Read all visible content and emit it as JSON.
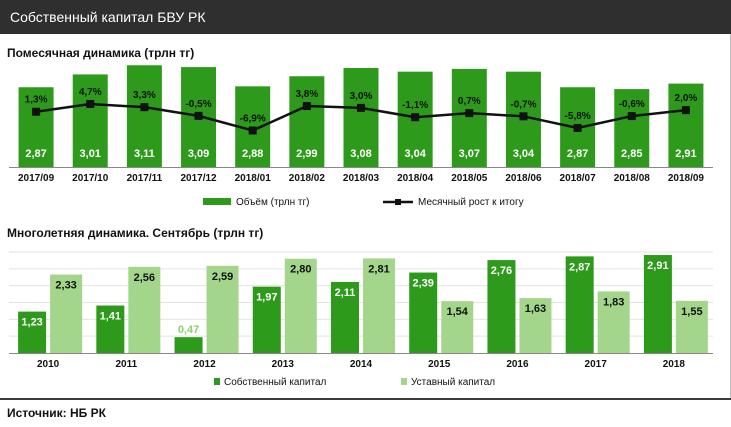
{
  "header": {
    "title": "Собственный  капитал БВУ РК"
  },
  "footer": {
    "source": "Источник:  НБ РК"
  },
  "colors": {
    "dark_green": "#2e9a1b",
    "light_green": "#a3d68a",
    "line": "#111111",
    "header_bg": "#2f2f2f"
  },
  "chart_data": [
    {
      "type": "bar",
      "title": "Помесячная динамика  (трлн тг)",
      "categories": [
        "2017/09",
        "2017/10",
        "2017/11",
        "2017/12",
        "2018/01",
        "2018/02",
        "2018/03",
        "2018/04",
        "2018/05",
        "2018/06",
        "2018/07",
        "2018/08",
        "2018/09"
      ],
      "series": [
        {
          "name": "Объём  (трлн тг)",
          "type": "bar",
          "values": [
            2.87,
            3.01,
            3.11,
            3.09,
            2.88,
            2.99,
            3.08,
            3.04,
            3.07,
            3.04,
            2.87,
            2.85,
            2.91
          ],
          "labels": [
            "2,87",
            "3,01",
            "3,11",
            "3,09",
            "2,88",
            "2,99",
            "3,08",
            "3,04",
            "3,07",
            "3,04",
            "2,87",
            "2,85",
            "2,91"
          ]
        },
        {
          "name": "Месячный рост к итогу",
          "type": "line",
          "values": [
            1.3,
            4.7,
            3.3,
            -0.5,
            -6.9,
            3.8,
            3.0,
            -1.1,
            0.7,
            -0.7,
            -5.8,
            -0.6,
            2.0
          ],
          "labels": [
            "1,3%",
            "4,7%",
            "3,3%",
            "-0,5%",
            "-6,9%",
            "3,8%",
            "3,0%",
            "-1,1%",
            "0,7%",
            "-0,7%",
            "-5,8%",
            "-0,6%",
            "2,0%"
          ]
        }
      ],
      "legend_position": "bottom",
      "grid": false
    },
    {
      "type": "bar",
      "title": "Многолетняя динамика. Сентябрь  (трлн тг)",
      "categories": [
        "2010",
        "2011",
        "2012",
        "2013",
        "2014",
        "2015",
        "2016",
        "2017",
        "2018"
      ],
      "series": [
        {
          "name": "Собственный капитал",
          "values": [
            1.23,
            1.41,
            0.47,
            1.97,
            2.11,
            2.39,
            2.76,
            2.87,
            2.91
          ],
          "labels": [
            "1,23",
            "1,41",
            "0,47",
            "1,97",
            "2,11",
            "2,39",
            "2,76",
            "2,87",
            "2,91"
          ]
        },
        {
          "name": "Уставный капитал",
          "values": [
            2.33,
            2.56,
            2.59,
            2.8,
            2.81,
            1.54,
            1.63,
            1.83,
            1.55
          ],
          "labels": [
            "2,33",
            "2,56",
            "2,59",
            "2,80",
            "2,81",
            "1,54",
            "1,63",
            "1,83",
            "1,55"
          ]
        }
      ],
      "legend_position": "bottom",
      "grid": true
    }
  ]
}
